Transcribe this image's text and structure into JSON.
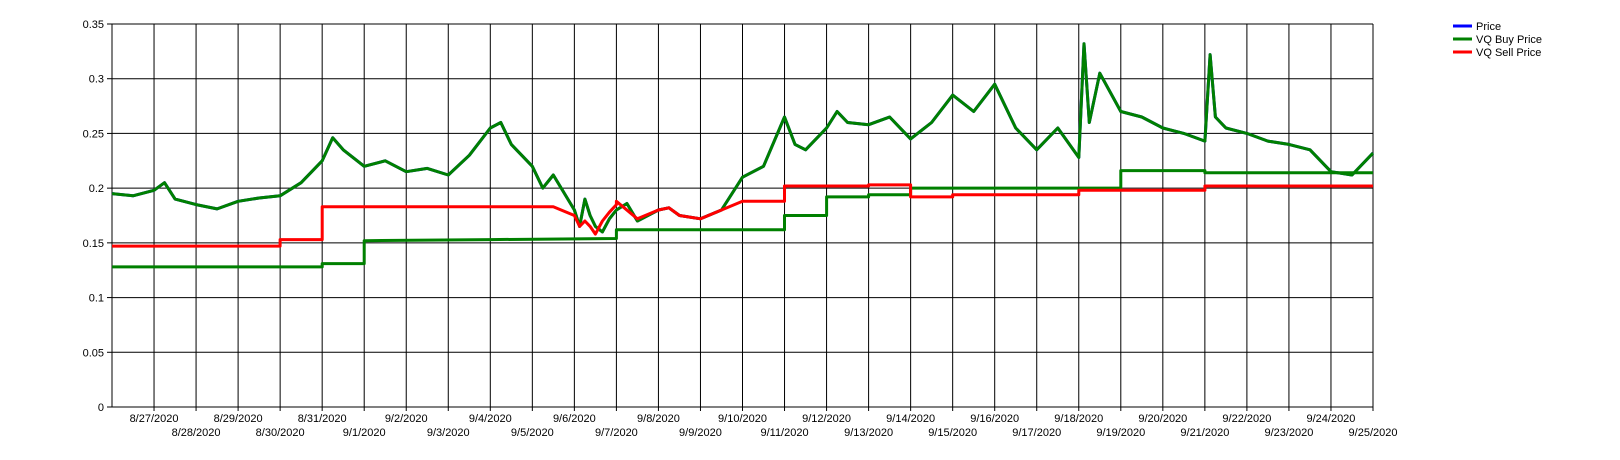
{
  "chart_data": {
    "type": "line",
    "title": "",
    "xlabel": "",
    "ylabel": "",
    "ylim": [
      0,
      0.35
    ],
    "yticks": [
      "0",
      "0.05",
      "0.1",
      "0.15",
      "0.2",
      "0.25",
      "0.3",
      "0.35"
    ],
    "xlim": [
      "2020-08-26",
      "2020-09-25"
    ],
    "xticks": [
      "8/27/2020",
      "8/28/2020",
      "8/29/2020",
      "8/30/2020",
      "8/31/2020",
      "9/1/2020",
      "9/2/2020",
      "9/3/2020",
      "9/4/2020",
      "9/5/2020",
      "9/6/2020",
      "9/7/2020",
      "9/8/2020",
      "9/9/2020",
      "9/10/2020",
      "9/11/2020",
      "9/12/2020",
      "9/13/2020",
      "9/14/2020",
      "9/15/2020",
      "9/16/2020",
      "9/17/2020",
      "9/18/2020",
      "9/19/2020",
      "9/20/2020",
      "9/21/2020",
      "9/22/2020",
      "9/23/2020",
      "9/24/2020",
      "9/25/2020"
    ],
    "grid": true,
    "legend_position": "top-right",
    "colors": {
      "Price": "#0000ff",
      "VQ Buy Price": "#008000",
      "VQ Sell Price": "#ff0000"
    },
    "series": [
      {
        "name": "Price",
        "color": "#0000ff",
        "points": [
          [
            "2020-08-26",
            0.195
          ],
          [
            "2020-08-26 12:00",
            0.193
          ],
          [
            "2020-08-27",
            0.198
          ],
          [
            "2020-08-27 06:00",
            0.205
          ],
          [
            "2020-08-27 12:00",
            0.19
          ],
          [
            "2020-08-28",
            0.185
          ],
          [
            "2020-08-28 12:00",
            0.181
          ],
          [
            "2020-08-29",
            0.188
          ],
          [
            "2020-08-29 12:00",
            0.191
          ],
          [
            "2020-08-30",
            0.193
          ],
          [
            "2020-08-30 12:00",
            0.205
          ],
          [
            "2020-08-31",
            0.225
          ],
          [
            "2020-08-31 06:00",
            0.246
          ],
          [
            "2020-08-31 12:00",
            0.235
          ],
          [
            "2020-09-01",
            0.22
          ],
          [
            "2020-09-01 12:00",
            0.225
          ],
          [
            "2020-09-02",
            0.215
          ],
          [
            "2020-09-02 12:00",
            0.218
          ],
          [
            "2020-09-03",
            0.212
          ],
          [
            "2020-09-03 12:00",
            0.23
          ],
          [
            "2020-09-04",
            0.255
          ],
          [
            "2020-09-04 06:00",
            0.26
          ],
          [
            "2020-09-04 12:00",
            0.24
          ],
          [
            "2020-09-05",
            0.22
          ],
          [
            "2020-09-05 06:00",
            0.2
          ],
          [
            "2020-09-05 12:00",
            0.212
          ],
          [
            "2020-09-06",
            0.18
          ],
          [
            "2020-09-06 03:00",
            0.165
          ],
          [
            "2020-09-06 06:00",
            0.19
          ],
          [
            "2020-09-06 09:00",
            0.175
          ],
          [
            "2020-09-06 12:00",
            0.165
          ],
          [
            "2020-09-06 16:00",
            0.16
          ],
          [
            "2020-09-06 20:00",
            0.172
          ],
          [
            "2020-09-07",
            0.18
          ],
          [
            "2020-09-07 06:00",
            0.186
          ],
          [
            "2020-09-07 12:00",
            0.17
          ],
          [
            "2020-09-08",
            0.18
          ],
          [
            "2020-09-08 06:00",
            0.182
          ],
          [
            "2020-09-08 12:00",
            0.175
          ],
          [
            "2020-09-09",
            0.172
          ],
          [
            "2020-09-09 12:00",
            0.18
          ],
          [
            "2020-09-10",
            0.21
          ],
          [
            "2020-09-10 12:00",
            0.22
          ],
          [
            "2020-09-11",
            0.265
          ],
          [
            "2020-09-11 06:00",
            0.24
          ],
          [
            "2020-09-11 12:00",
            0.235
          ],
          [
            "2020-09-12",
            0.255
          ],
          [
            "2020-09-12 06:00",
            0.27
          ],
          [
            "2020-09-12 12:00",
            0.26
          ],
          [
            "2020-09-13",
            0.258
          ],
          [
            "2020-09-13 12:00",
            0.265
          ],
          [
            "2020-09-14",
            0.245
          ],
          [
            "2020-09-14 12:00",
            0.26
          ],
          [
            "2020-09-15",
            0.285
          ],
          [
            "2020-09-15 12:00",
            0.27
          ],
          [
            "2020-09-16",
            0.295
          ],
          [
            "2020-09-16 12:00",
            0.255
          ],
          [
            "2020-09-17",
            0.235
          ],
          [
            "2020-09-17 12:00",
            0.255
          ],
          [
            "2020-09-18",
            0.228
          ],
          [
            "2020-09-18 03:00",
            0.332
          ],
          [
            "2020-09-18 06:00",
            0.26
          ],
          [
            "2020-09-18 12:00",
            0.305
          ],
          [
            "2020-09-19",
            0.27
          ],
          [
            "2020-09-19 12:00",
            0.265
          ],
          [
            "2020-09-20",
            0.255
          ],
          [
            "2020-09-20 12:00",
            0.25
          ],
          [
            "2020-09-21",
            0.243
          ],
          [
            "2020-09-21 03:00",
            0.322
          ],
          [
            "2020-09-21 06:00",
            0.265
          ],
          [
            "2020-09-21 12:00",
            0.255
          ],
          [
            "2020-09-22",
            0.25
          ],
          [
            "2020-09-22 12:00",
            0.243
          ],
          [
            "2020-09-23",
            0.24
          ],
          [
            "2020-09-23 12:00",
            0.235
          ],
          [
            "2020-09-24",
            0.215
          ],
          [
            "2020-09-24 12:00",
            0.212
          ],
          [
            "2020-09-25",
            0.232
          ]
        ]
      },
      {
        "name": "VQ Buy Price",
        "color": "#008000",
        "points": [
          [
            "2020-08-26",
            0.195
          ],
          [
            "2020-08-26 12:00",
            0.193
          ],
          [
            "2020-08-27",
            0.198
          ],
          [
            "2020-08-27 06:00",
            0.205
          ],
          [
            "2020-08-27 12:00",
            0.19
          ],
          [
            "2020-08-28",
            0.185
          ],
          [
            "2020-08-28 12:00",
            0.181
          ],
          [
            "2020-08-29",
            0.188
          ],
          [
            "2020-08-29 12:00",
            0.191
          ],
          [
            "2020-08-30",
            0.193
          ],
          [
            "2020-08-30 12:00",
            0.205
          ],
          [
            "2020-08-31",
            0.225
          ],
          [
            "2020-08-31 06:00",
            0.246
          ],
          [
            "2020-08-31 12:00",
            0.235
          ],
          [
            "2020-09-01",
            0.22
          ],
          [
            "2020-09-01 12:00",
            0.225
          ],
          [
            "2020-09-02",
            0.215
          ],
          [
            "2020-09-02 12:00",
            0.218
          ],
          [
            "2020-09-03",
            0.212
          ],
          [
            "2020-09-03 12:00",
            0.23
          ],
          [
            "2020-09-04",
            0.255
          ],
          [
            "2020-09-04 06:00",
            0.26
          ],
          [
            "2020-09-04 12:00",
            0.24
          ],
          [
            "2020-09-05",
            0.22
          ],
          [
            "2020-09-05 06:00",
            0.2
          ],
          [
            "2020-09-05 12:00",
            0.212
          ],
          [
            "2020-09-06",
            0.18
          ],
          [
            "2020-09-06 03:00",
            0.165
          ],
          [
            "2020-09-06 06:00",
            0.19
          ],
          [
            "2020-09-06 09:00",
            0.175
          ],
          [
            "2020-09-06 12:00",
            0.165
          ],
          [
            "2020-09-06 16:00",
            0.16
          ],
          [
            "2020-09-06 20:00",
            0.172
          ],
          [
            "2020-09-07",
            0.18
          ],
          [
            "2020-09-07 06:00",
            0.186
          ],
          [
            "2020-09-07 12:00",
            0.17
          ],
          [
            "2020-09-08",
            0.18
          ],
          [
            "2020-09-08 06:00",
            0.182
          ],
          [
            "2020-09-08 12:00",
            0.175
          ],
          [
            "2020-09-09",
            0.172
          ],
          [
            "2020-09-09 12:00",
            0.18
          ],
          [
            "2020-09-10",
            0.21
          ],
          [
            "2020-09-10 12:00",
            0.22
          ],
          [
            "2020-09-11",
            0.265
          ],
          [
            "2020-09-11 06:00",
            0.24
          ],
          [
            "2020-09-11 12:00",
            0.235
          ],
          [
            "2020-09-12",
            0.255
          ],
          [
            "2020-09-12 06:00",
            0.27
          ],
          [
            "2020-09-12 12:00",
            0.26
          ],
          [
            "2020-09-13",
            0.258
          ],
          [
            "2020-09-13 12:00",
            0.265
          ],
          [
            "2020-09-14",
            0.245
          ],
          [
            "2020-09-14 12:00",
            0.26
          ],
          [
            "2020-09-15",
            0.285
          ],
          [
            "2020-09-15 12:00",
            0.27
          ],
          [
            "2020-09-16",
            0.295
          ],
          [
            "2020-09-16 12:00",
            0.255
          ],
          [
            "2020-09-17",
            0.235
          ],
          [
            "2020-09-17 12:00",
            0.255
          ],
          [
            "2020-09-18",
            0.228
          ],
          [
            "2020-09-18 03:00",
            0.332
          ],
          [
            "2020-09-18 06:00",
            0.26
          ],
          [
            "2020-09-18 12:00",
            0.305
          ],
          [
            "2020-09-19",
            0.27
          ],
          [
            "2020-09-19 12:00",
            0.265
          ],
          [
            "2020-09-20",
            0.255
          ],
          [
            "2020-09-20 12:00",
            0.25
          ],
          [
            "2020-09-21",
            0.243
          ],
          [
            "2020-09-21 03:00",
            0.322
          ],
          [
            "2020-09-21 06:00",
            0.265
          ],
          [
            "2020-09-21 12:00",
            0.255
          ],
          [
            "2020-09-22",
            0.25
          ],
          [
            "2020-09-22 12:00",
            0.243
          ],
          [
            "2020-09-23",
            0.24
          ],
          [
            "2020-09-23 12:00",
            0.235
          ],
          [
            "2020-09-24",
            0.215
          ],
          [
            "2020-09-24 12:00",
            0.212
          ],
          [
            "2020-09-25",
            0.232
          ]
        ]
      },
      {
        "name": "VQ Buy Price",
        "color": "#008000",
        "points": [
          [
            "2020-08-26",
            0.128
          ],
          [
            "2020-08-31",
            0.128
          ],
          [
            "2020-08-31",
            0.131
          ],
          [
            "2020-09-01",
            0.131
          ],
          [
            "2020-09-01",
            0.152
          ],
          [
            "2020-09-04",
            0.153
          ],
          [
            "2020-09-07",
            0.154
          ],
          [
            "2020-09-07",
            0.162
          ],
          [
            "2020-09-11",
            0.162
          ],
          [
            "2020-09-11",
            0.175
          ],
          [
            "2020-09-12",
            0.175
          ],
          [
            "2020-09-12",
            0.192
          ],
          [
            "2020-09-13",
            0.192
          ],
          [
            "2020-09-13",
            0.194
          ],
          [
            "2020-09-14",
            0.194
          ],
          [
            "2020-09-14",
            0.2
          ],
          [
            "2020-09-19",
            0.2
          ],
          [
            "2020-09-19",
            0.216
          ],
          [
            "2020-09-21",
            0.216
          ],
          [
            "2020-09-21",
            0.214
          ],
          [
            "2020-09-25",
            0.214
          ]
        ]
      },
      {
        "name": "VQ Sell Price",
        "color": "#ff0000",
        "points": [
          [
            "2020-08-26",
            0.147
          ],
          [
            "2020-08-30",
            0.147
          ],
          [
            "2020-08-30",
            0.153
          ],
          [
            "2020-08-31",
            0.153
          ],
          [
            "2020-08-31",
            0.183
          ],
          [
            "2020-09-05",
            0.183
          ],
          [
            "2020-09-05 12:00",
            0.183
          ],
          [
            "2020-09-06",
            0.175
          ],
          [
            "2020-09-06 03:00",
            0.165
          ],
          [
            "2020-09-06 06:00",
            0.17
          ],
          [
            "2020-09-06 09:00",
            0.165
          ],
          [
            "2020-09-06 12:00",
            0.158
          ],
          [
            "2020-09-06 16:00",
            0.17
          ],
          [
            "2020-09-06 20:00",
            0.178
          ],
          [
            "2020-09-07",
            0.185
          ],
          [
            "2020-09-07",
            0.188
          ],
          [
            "2020-09-07 12:00",
            0.172
          ],
          [
            "2020-09-08",
            0.18
          ],
          [
            "2020-09-08 06:00",
            0.182
          ],
          [
            "2020-09-08 12:00",
            0.175
          ],
          [
            "2020-09-09",
            0.172
          ],
          [
            "2020-09-09 12:00",
            0.18
          ],
          [
            "2020-09-10",
            0.188
          ],
          [
            "2020-09-11",
            0.188
          ],
          [
            "2020-09-11",
            0.202
          ],
          [
            "2020-09-13",
            0.202
          ],
          [
            "2020-09-13",
            0.203
          ],
          [
            "2020-09-14",
            0.203
          ],
          [
            "2020-09-14",
            0.192
          ],
          [
            "2020-09-15",
            0.192
          ],
          [
            "2020-09-15",
            0.194
          ],
          [
            "2020-09-18",
            0.194
          ],
          [
            "2020-09-18",
            0.198
          ],
          [
            "2020-09-21",
            0.198
          ],
          [
            "2020-09-21",
            0.202
          ],
          [
            "2020-09-25",
            0.202
          ]
        ]
      }
    ],
    "legend": [
      {
        "label": "Price",
        "color": "#0000ff"
      },
      {
        "label": "VQ Buy Price",
        "color": "#008000"
      },
      {
        "label": "VQ Sell Price",
        "color": "#ff0000"
      }
    ]
  }
}
